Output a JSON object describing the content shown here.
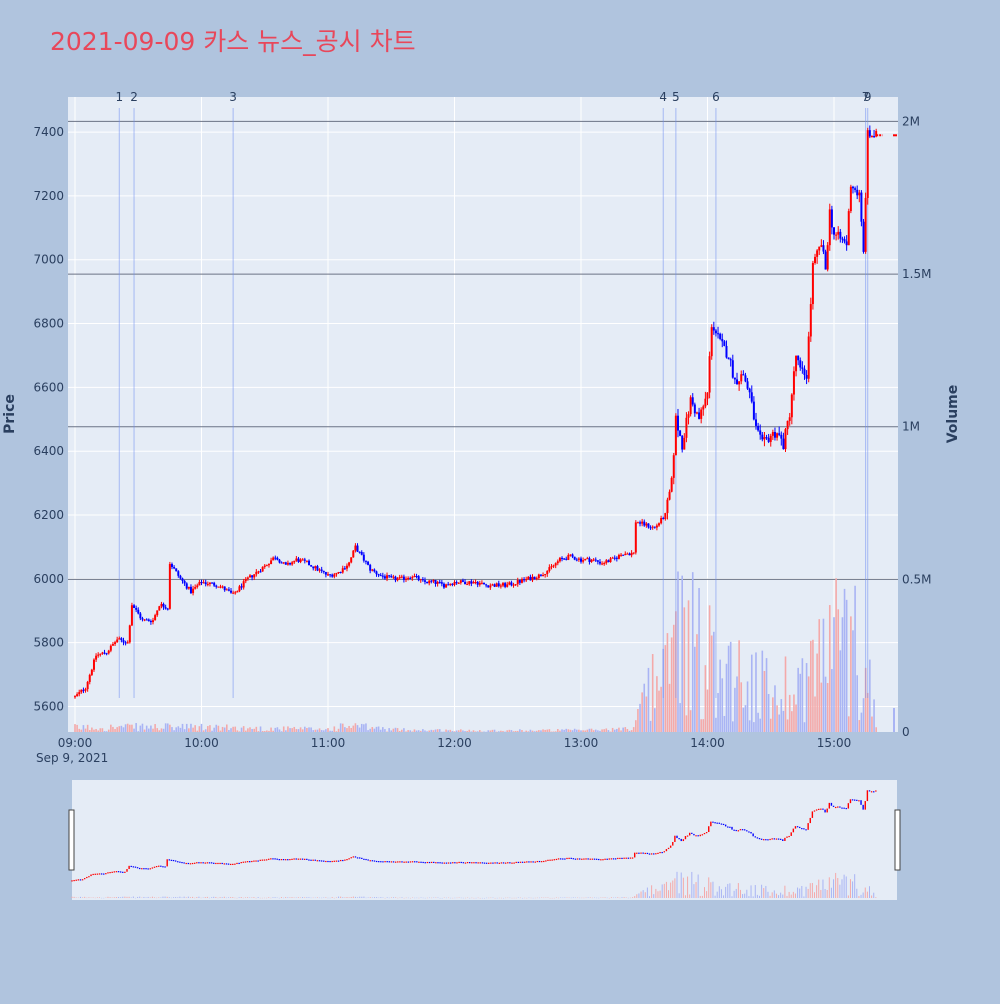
{
  "colors": {
    "page_bg": "#b0c4de",
    "plot_bg": "#e5ecf6",
    "title": "#e8475a",
    "up": "#ff0000",
    "down": "#0000ff",
    "vol_up": "#f4a9a9",
    "vol_down": "#a9b4f4",
    "event_line": "#6f8ef0",
    "axis_text": "#2a3f5f",
    "volume_grid": "#6b7385"
  },
  "chart_data": {
    "type": "candlestick",
    "title": "2021-09-09 카스 뉴스_공시 차트",
    "ylabel": "Price",
    "y2label": "Volume",
    "date_label": "Sep 9, 2021",
    "x_ticks": [
      "09:00",
      "10:00",
      "11:00",
      "12:00",
      "13:00",
      "14:00",
      "15:00"
    ],
    "y_ticks": [
      5600,
      5800,
      6000,
      6200,
      6400,
      6600,
      6800,
      7000,
      7200,
      7400
    ],
    "y2_ticks": [
      {
        "value": 0,
        "label": "0"
      },
      {
        "value": 500000,
        "label": "0.5M"
      },
      {
        "value": 1000000,
        "label": "1M"
      },
      {
        "value": 1500000,
        "label": "1.5M"
      },
      {
        "value": 2000000,
        "label": "2M"
      }
    ],
    "x_range": [
      "09:00",
      "15:30"
    ],
    "ylim": [
      5520,
      7510
    ],
    "y2lim": [
      0,
      2080000
    ],
    "grid": true,
    "range_slider": true,
    "event_markers": [
      {
        "label": "1",
        "time": "09:21"
      },
      {
        "label": "2",
        "time": "09:28"
      },
      {
        "label": "3",
        "time": "10:15"
      },
      {
        "label": "4",
        "time": "13:39"
      },
      {
        "label": "5",
        "time": "13:45"
      },
      {
        "label": "6",
        "time": "14:04"
      },
      {
        "label": "7",
        "time": "15:15"
      },
      {
        "label": "9",
        "time": "15:16"
      }
    ],
    "price_path": [
      [
        "09:00",
        5630
      ],
      [
        "09:05",
        5660
      ],
      [
        "09:10",
        5760
      ],
      [
        "09:15",
        5770
      ],
      [
        "09:20",
        5810
      ],
      [
        "09:25",
        5800
      ],
      [
        "09:27",
        5920
      ],
      [
        "09:32",
        5870
      ],
      [
        "09:37",
        5870
      ],
      [
        "09:40",
        5920
      ],
      [
        "09:44",
        5910
      ],
      [
        "09:45",
        6050
      ],
      [
        "09:50",
        6000
      ],
      [
        "09:55",
        5960
      ],
      [
        "10:00",
        5990
      ],
      [
        "10:08",
        5980
      ],
      [
        "10:15",
        5950
      ],
      [
        "10:22",
        6000
      ],
      [
        "10:30",
        6040
      ],
      [
        "10:35",
        6070
      ],
      [
        "10:40",
        6040
      ],
      [
        "10:45",
        6060
      ],
      [
        "10:50",
        6050
      ],
      [
        "10:55",
        6030
      ],
      [
        "11:00",
        6010
      ],
      [
        "11:05",
        6020
      ],
      [
        "11:10",
        6050
      ],
      [
        "11:13",
        6100
      ],
      [
        "11:20",
        6030
      ],
      [
        "11:25",
        6010
      ],
      [
        "11:30",
        6000
      ],
      [
        "11:35",
        6000
      ],
      [
        "11:40",
        6010
      ],
      [
        "11:45",
        5990
      ],
      [
        "11:50",
        5990
      ],
      [
        "11:55",
        5980
      ],
      [
        "12:00",
        5990
      ],
      [
        "12:05",
        5990
      ],
      [
        "12:10",
        5990
      ],
      [
        "12:15",
        5980
      ],
      [
        "12:20",
        5980
      ],
      [
        "12:25",
        5980
      ],
      [
        "12:30",
        5990
      ],
      [
        "12:35",
        6000
      ],
      [
        "12:40",
        6010
      ],
      [
        "12:45",
        6030
      ],
      [
        "12:50",
        6060
      ],
      [
        "12:55",
        6070
      ],
      [
        "13:00",
        6060
      ],
      [
        "13:05",
        6060
      ],
      [
        "13:10",
        6050
      ],
      [
        "13:15",
        6060
      ],
      [
        "13:20",
        6080
      ],
      [
        "13:25",
        6080
      ],
      [
        "13:26",
        6180
      ],
      [
        "13:30",
        6170
      ],
      [
        "13:35",
        6160
      ],
      [
        "13:40",
        6200
      ],
      [
        "13:43",
        6300
      ],
      [
        "13:45",
        6500
      ],
      [
        "13:48",
        6420
      ],
      [
        "13:52",
        6560
      ],
      [
        "13:56",
        6500
      ],
      [
        "14:00",
        6580
      ],
      [
        "14:02",
        6800
      ],
      [
        "14:06",
        6740
      ],
      [
        "14:10",
        6700
      ],
      [
        "14:13",
        6620
      ],
      [
        "14:17",
        6640
      ],
      [
        "14:20",
        6580
      ],
      [
        "14:23",
        6470
      ],
      [
        "14:26",
        6420
      ],
      [
        "14:30",
        6450
      ],
      [
        "14:33",
        6460
      ],
      [
        "14:36",
        6420
      ],
      [
        "14:39",
        6520
      ],
      [
        "14:42",
        6700
      ],
      [
        "14:44",
        6650
      ],
      [
        "14:47",
        6640
      ],
      [
        "14:50",
        6980
      ],
      [
        "14:54",
        7050
      ],
      [
        "14:56",
        6970
      ],
      [
        "14:58",
        7150
      ],
      [
        "15:00",
        7080
      ],
      [
        "15:04",
        7060
      ],
      [
        "15:06",
        7050
      ],
      [
        "15:08",
        7240
      ],
      [
        "15:12",
        7200
      ],
      [
        "15:14",
        7020
      ],
      [
        "15:16",
        7390
      ],
      [
        "15:20",
        7390
      ]
    ],
    "volume_profile": [
      [
        "09:00",
        14000
      ],
      [
        "09:30",
        16000
      ],
      [
        "10:00",
        15000
      ],
      [
        "10:30",
        11000
      ],
      [
        "11:00",
        9000
      ],
      [
        "11:10",
        20000
      ],
      [
        "11:30",
        8000
      ],
      [
        "12:00",
        5000
      ],
      [
        "12:30",
        5000
      ],
      [
        "13:00",
        6000
      ],
      [
        "13:25",
        10000
      ],
      [
        "13:26",
        140000
      ],
      [
        "13:40",
        170000
      ],
      [
        "13:45",
        380000
      ],
      [
        "14:00",
        240000
      ],
      [
        "14:30",
        130000
      ],
      [
        "14:45",
        170000
      ],
      [
        "15:00",
        300000
      ],
      [
        "15:10",
        280000
      ],
      [
        "15:20",
        100000
      ]
    ]
  }
}
